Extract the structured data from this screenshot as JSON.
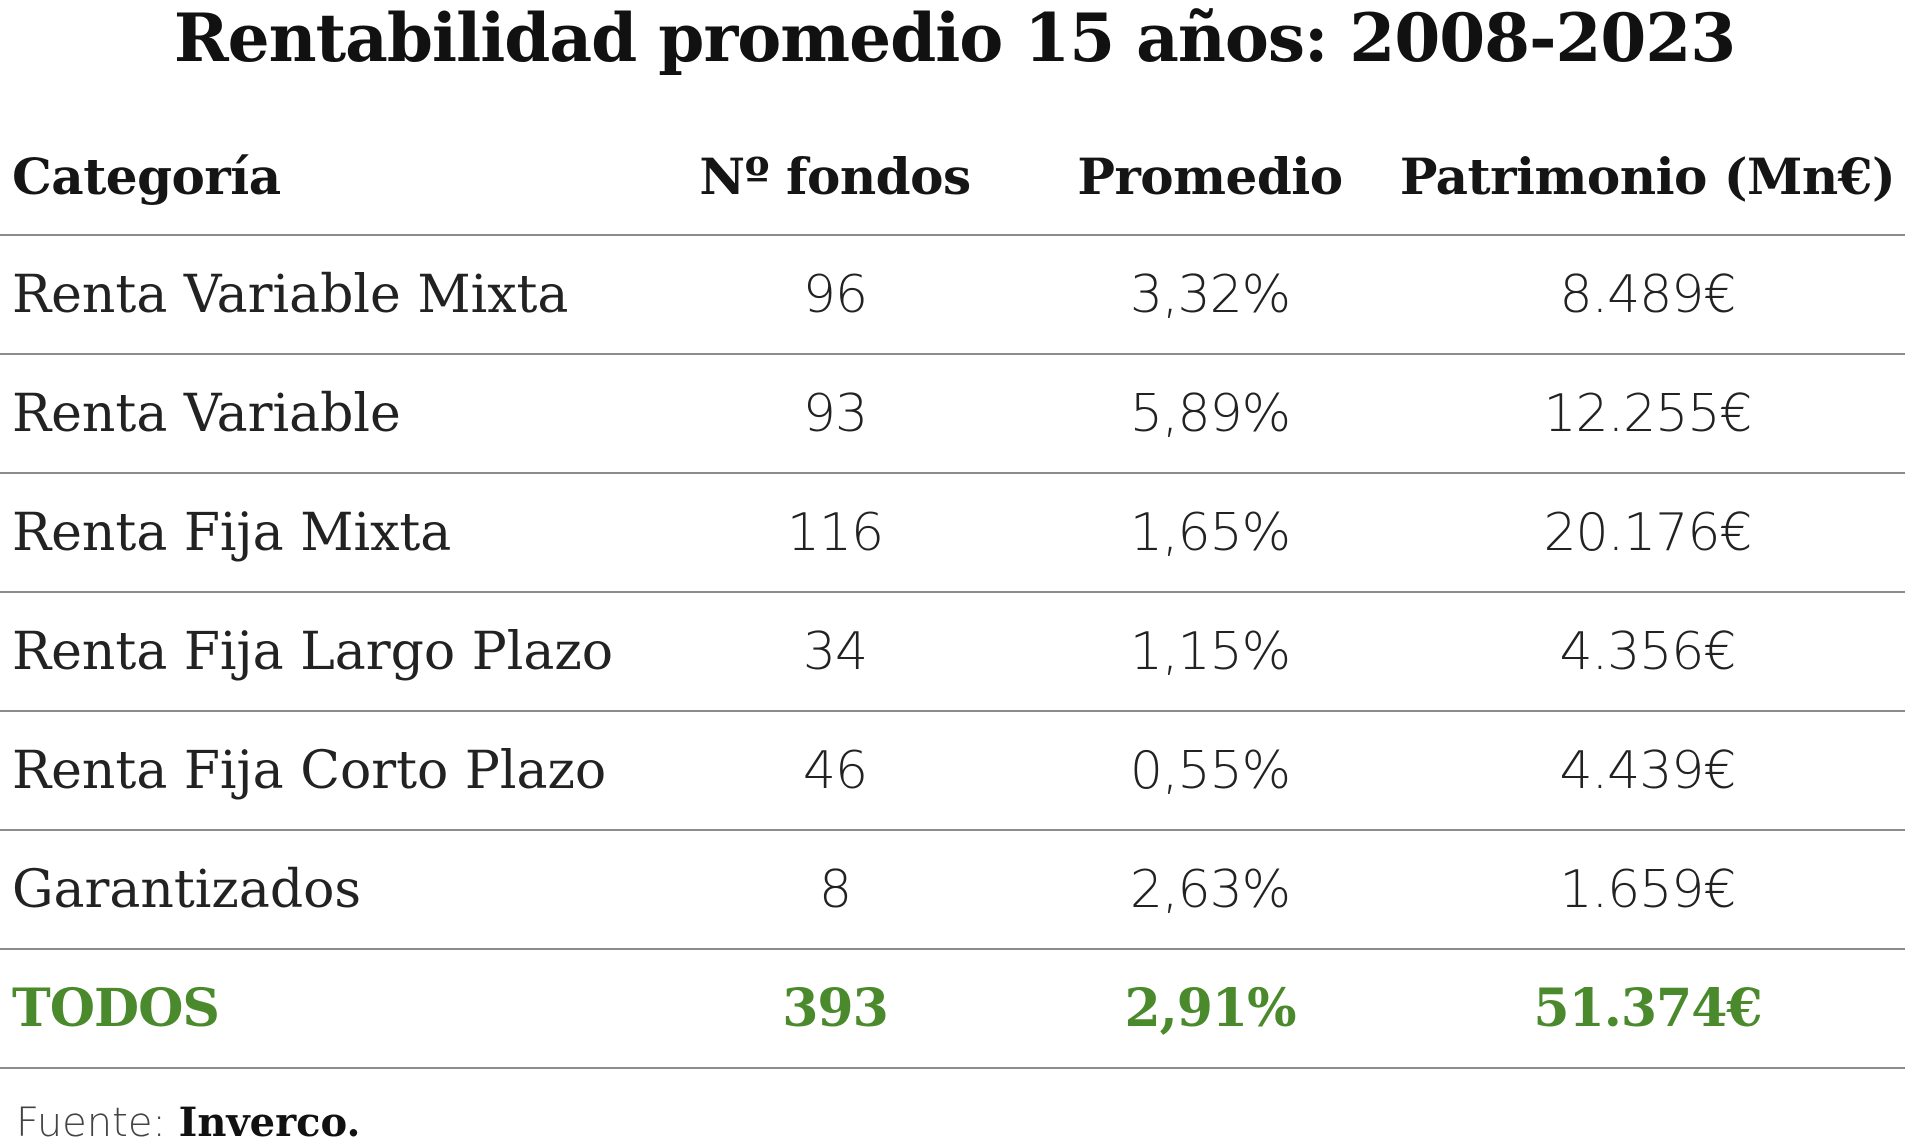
{
  "title": "Rentabilidad promedio 15 años: 2008-2023",
  "chart_data": {
    "type": "table",
    "title": "Rentabilidad promedio 15 años: 2008-2023",
    "columns": [
      "Categoría",
      "Nº fondos",
      "Promedio",
      "Patrimonio (Mn€)"
    ],
    "rows": [
      {
        "categoria": "Renta Variable Mixta",
        "fondos": "96",
        "promedio": "3,32%",
        "patrimonio": "8.489€"
      },
      {
        "categoria": "Renta Variable",
        "fondos": "93",
        "promedio": "5,89%",
        "patrimonio": "12.255€"
      },
      {
        "categoria": "Renta Fija Mixta",
        "fondos": "116",
        "promedio": "1,65%",
        "patrimonio": "20.176€"
      },
      {
        "categoria": "Renta Fija Largo Plazo",
        "fondos": "34",
        "promedio": "1,15%",
        "patrimonio": "4.356€"
      },
      {
        "categoria": "Renta Fija Corto Plazo",
        "fondos": "46",
        "promedio": "0,55%",
        "patrimonio": "4.439€"
      },
      {
        "categoria": "Garantizados",
        "fondos": "8",
        "promedio": "2,63%",
        "patrimonio": "1.659€"
      }
    ],
    "total": {
      "categoria": "TODOS",
      "fondos": "393",
      "promedio": "2,91%",
      "patrimonio": "51.374€"
    }
  },
  "colors": {
    "total_row": "#4a8a2c",
    "divider": "#8c8c8c"
  },
  "source": {
    "label": "Fuente: ",
    "name": "Inverco."
  }
}
